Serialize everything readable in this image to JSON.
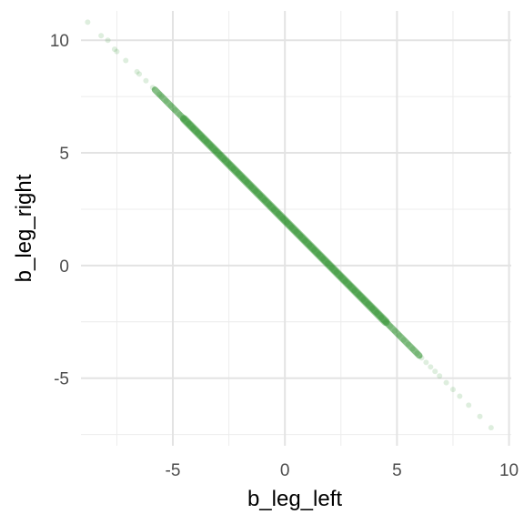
{
  "chart_data": {
    "type": "scatter",
    "title": "",
    "xlabel": "b_leg_left",
    "ylabel": "b_leg_right",
    "xlim": [
      -9.1,
      10.1
    ],
    "ylim": [
      -8.0,
      11.3
    ],
    "x_ticks": [
      -5,
      0,
      5,
      10
    ],
    "y_ticks": [
      -5,
      0,
      5,
      10
    ],
    "x_tick_labels": [
      "-5",
      "0",
      "5",
      "10"
    ],
    "y_tick_labels": [
      "-5",
      "0",
      "5",
      "10"
    ],
    "grid": true,
    "point_color": "#228B22",
    "point_alpha": 0.15,
    "trend": {
      "description": "points lie along line",
      "slope": -1.0,
      "intercept": 2.0
    },
    "points": {
      "x": [
        -8.8,
        -8.2,
        -7.9,
        -7.6,
        -7.5,
        -7.1,
        -6.6,
        -6.5,
        -6.2,
        -5.9,
        -5.6,
        -5.5,
        -5.3,
        -5.1,
        -4.9,
        -4.7,
        -4.5,
        -4.3,
        -4.1,
        -3.9,
        -3.7,
        -3.5,
        -3.3,
        -3.1,
        -2.9,
        -2.7,
        -2.5,
        -2.3,
        -2.1,
        -1.9,
        -1.7,
        -1.5,
        -1.3,
        -1.1,
        -0.9,
        -0.7,
        -0.5,
        -0.3,
        -0.1,
        0.1,
        0.3,
        0.5,
        0.7,
        0.9,
        1.1,
        1.3,
        1.5,
        1.7,
        1.9,
        2.1,
        2.3,
        2.5,
        2.7,
        2.9,
        3.1,
        3.3,
        3.5,
        3.7,
        3.9,
        4.1,
        4.3,
        4.5,
        4.7,
        4.9,
        5.1,
        5.3,
        5.5,
        5.7,
        5.9,
        6.1,
        6.3,
        6.5,
        6.7,
        6.9,
        7.2,
        7.5,
        7.8,
        8.2,
        8.7,
        9.2
      ],
      "y": [
        10.8,
        10.2,
        10.0,
        9.6,
        9.5,
        9.1,
        8.6,
        8.5,
        8.2,
        7.9,
        7.6,
        7.5,
        7.3,
        7.1,
        6.9,
        6.7,
        6.5,
        6.3,
        6.1,
        5.9,
        5.7,
        5.5,
        5.3,
        5.1,
        4.9,
        4.7,
        4.5,
        4.3,
        4.1,
        3.9,
        3.7,
        3.5,
        3.3,
        3.1,
        2.9,
        2.7,
        2.5,
        2.3,
        2.1,
        1.9,
        1.7,
        1.5,
        1.3,
        1.1,
        0.9,
        0.7,
        0.5,
        0.3,
        0.1,
        -0.1,
        -0.3,
        -0.5,
        -0.7,
        -0.9,
        -1.1,
        -1.3,
        -1.5,
        -1.7,
        -1.9,
        -2.1,
        -2.3,
        -2.5,
        -2.7,
        -2.9,
        -3.1,
        -3.3,
        -3.5,
        -3.7,
        -3.9,
        -4.1,
        -4.3,
        -4.5,
        -4.7,
        -4.9,
        -5.2,
        -5.5,
        -5.8,
        -6.2,
        -6.7,
        -7.2
      ]
    }
  }
}
